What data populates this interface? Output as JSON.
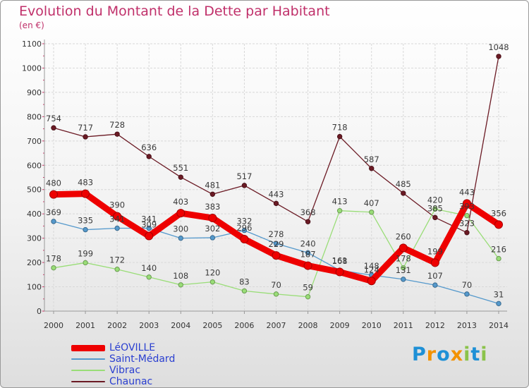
{
  "title": "Evolution du Montant de la Dette par Habitant",
  "subtitle": "(en €)",
  "logo": {
    "text": "Proxiti",
    "letters": [
      "P",
      "r",
      "o",
      "x",
      "i",
      "t",
      "i"
    ],
    "colors": [
      "#1e90d6",
      "#f39200",
      "#1e90d6",
      "#f39200",
      "#8bc34a",
      "#1e90d6",
      "#8bc34a"
    ]
  },
  "chart_data": {
    "type": "line",
    "title": "Evolution du Montant de la Dette par Habitant",
    "subtitle": "(en €)",
    "xlabel": "",
    "ylabel": "",
    "ylim": [
      0,
      1100
    ],
    "yticks": [
      0,
      100,
      200,
      300,
      400,
      500,
      600,
      700,
      800,
      900,
      1000,
      1100
    ],
    "grid": true,
    "legend_position": "bottom-left",
    "x": [
      "2000",
      "2001",
      "2002",
      "2003",
      "2004",
      "2005",
      "2006",
      "2007",
      "2008",
      "2009",
      "2010",
      "2011",
      "2012",
      "2013",
      "2014"
    ],
    "series": [
      {
        "name": "Chaunac",
        "color": "#6b1a24",
        "values": [
          754,
          717,
          728,
          636,
          551,
          481,
          517,
          443,
          368,
          718,
          587,
          485,
          385,
          323,
          1048
        ]
      },
      {
        "name": "Vibrac",
        "color": "#99dd77",
        "values": [
          178,
          199,
          172,
          140,
          108,
          120,
          83,
          70,
          59,
          413,
          407,
          178,
          420,
          393,
          216
        ]
      },
      {
        "name": "Saint-Médard",
        "color": "#5599cc",
        "values": [
          369,
          335,
          341,
          341,
          300,
          302,
          332,
          278,
          240,
          168,
          148,
          131,
          107,
          70,
          31
        ]
      },
      {
        "name": "LéOVILLE",
        "color": "#ee0000",
        "values": [
          480,
          483,
          390,
          309,
          403,
          383,
          296,
          229,
          187,
          161,
          124,
          260,
          199,
          443,
          356
        ]
      }
    ]
  }
}
